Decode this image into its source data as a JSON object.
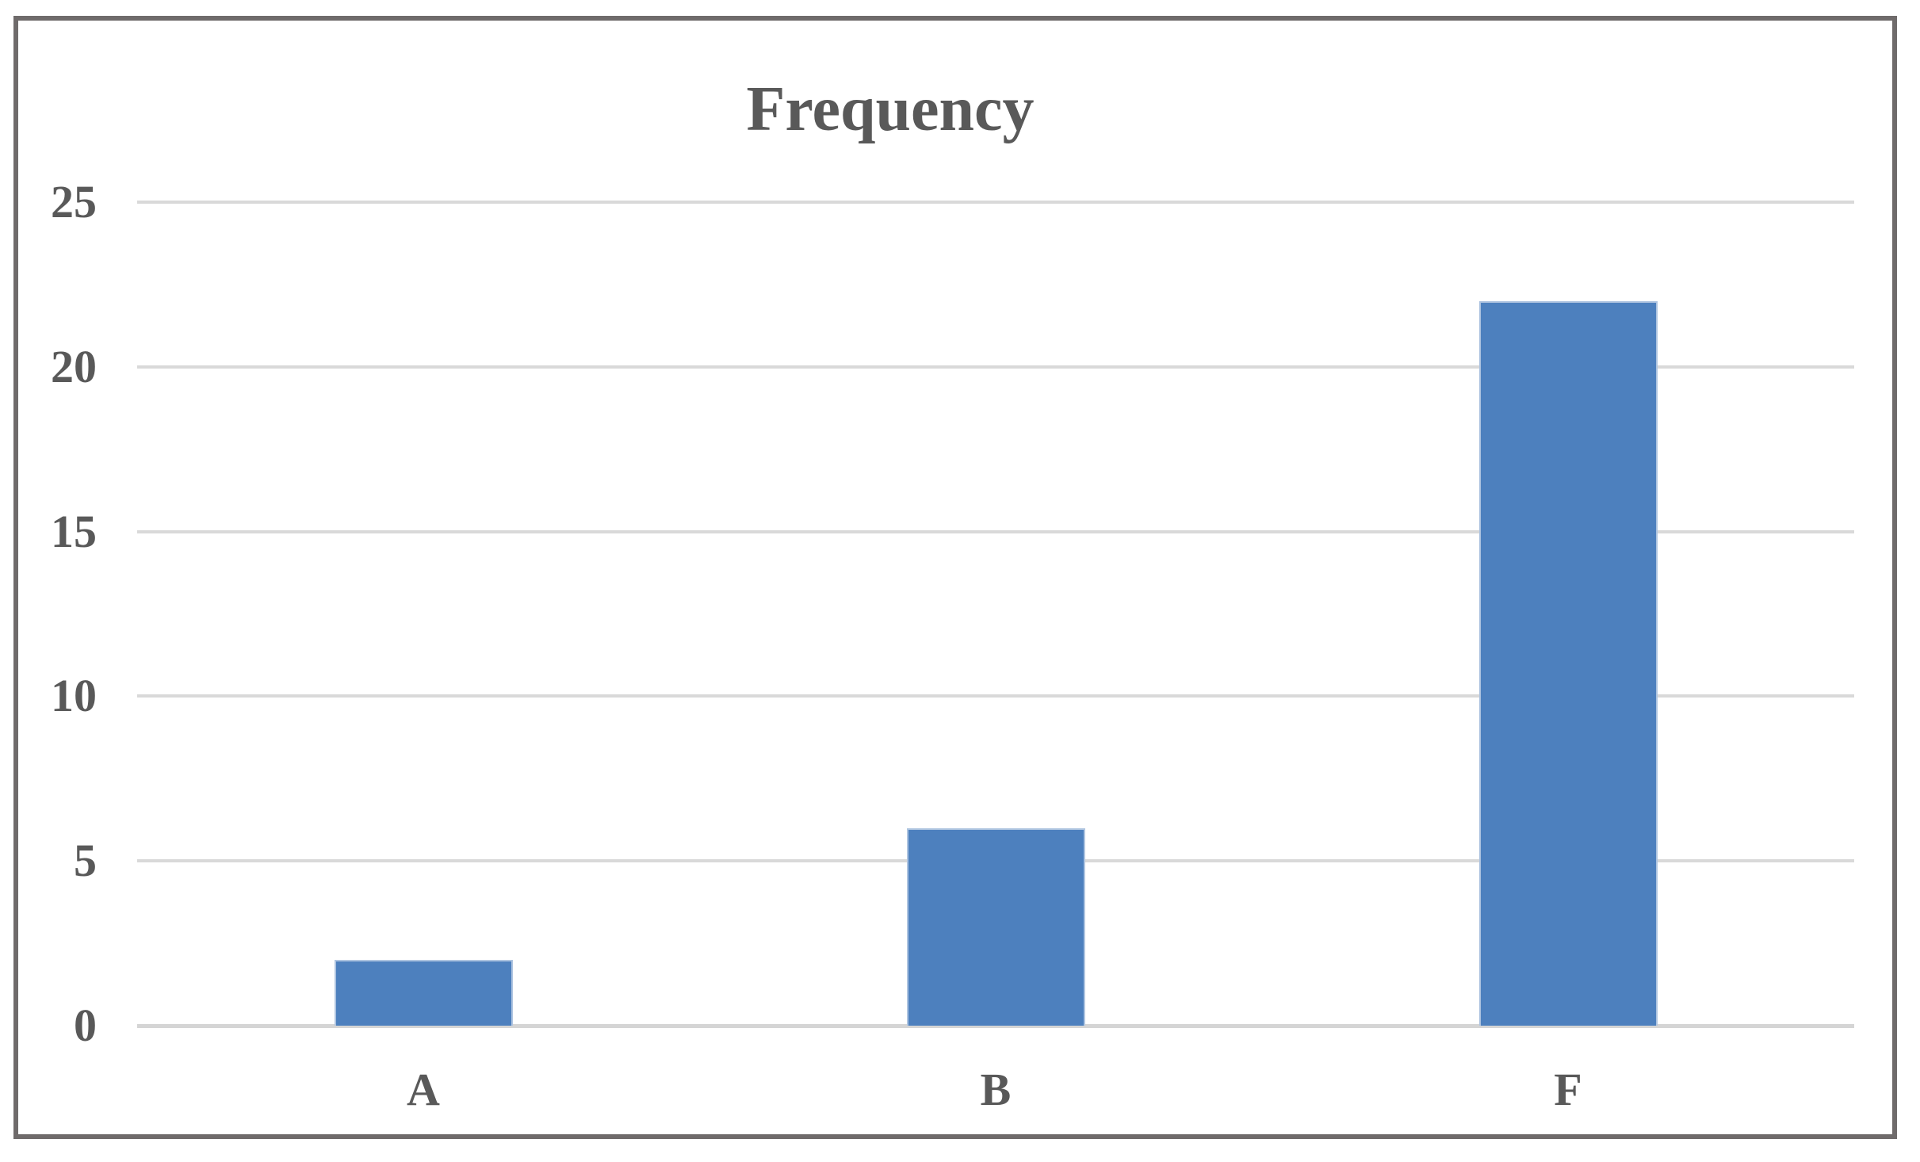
{
  "chart_data": {
    "type": "bar",
    "title": "Frequency",
    "categories": [
      "A",
      "B",
      "F"
    ],
    "values": [
      2,
      6,
      22
    ],
    "xlabel": "",
    "ylabel": "",
    "ylim": [
      0,
      25
    ],
    "yticks": [
      0,
      5,
      10,
      15,
      20,
      25
    ],
    "grid": true,
    "legend": false,
    "colors": {
      "bar_fill": "#4D80BE",
      "bar_border": "#AEC4E0",
      "gridline": "#D9D9D9",
      "axis_text": "#595959",
      "title_text": "#595959",
      "frame_border": "#6F6B6B",
      "background": "#FFFFFF"
    }
  }
}
